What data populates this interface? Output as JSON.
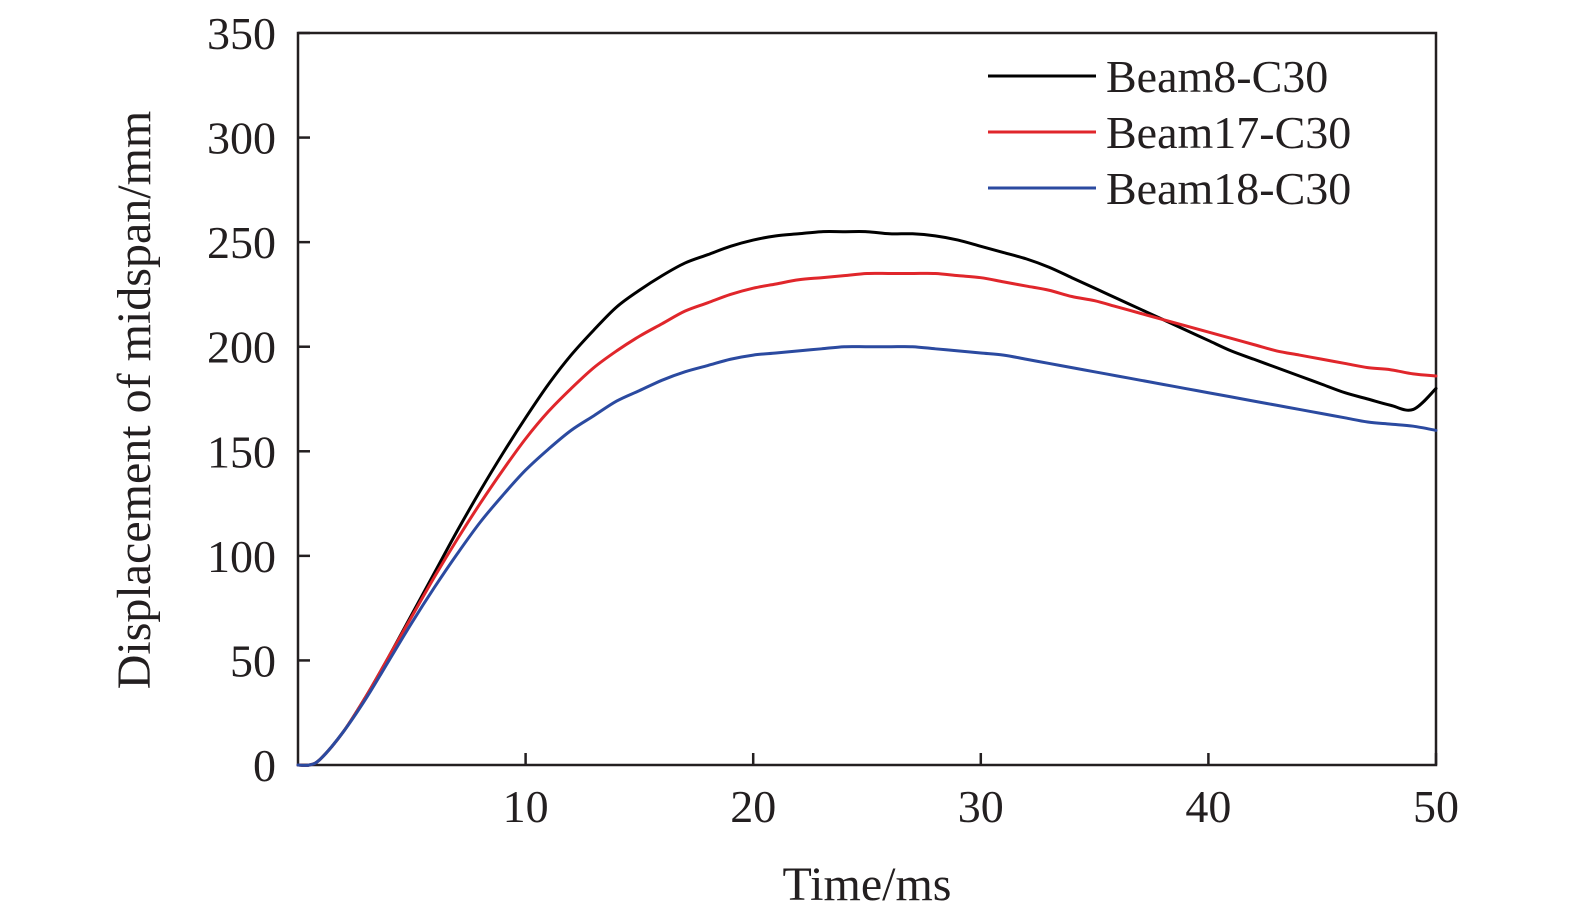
{
  "chart_data": {
    "type": "line",
    "title": "",
    "xlabel": "Time/ms",
    "ylabel": "Displacement of midspan/mm",
    "xlim": [
      0,
      50
    ],
    "ylim": [
      0,
      350
    ],
    "xticks": [
      10,
      20,
      30,
      40,
      50
    ],
    "xtick_labels": [
      "10",
      "20",
      "30",
      "40",
      "50"
    ],
    "yticks": [
      0,
      50,
      100,
      150,
      200,
      250,
      300,
      350
    ],
    "ytick_labels": [
      "0",
      "50",
      "100",
      "150",
      "200",
      "250",
      "300",
      "350"
    ],
    "grid": false,
    "legend_position": "top-right",
    "x": [
      0,
      0.5,
      1,
      2,
      3,
      4,
      5,
      6,
      7,
      8,
      9,
      10,
      11,
      12,
      13,
      14,
      15,
      16,
      17,
      18,
      19,
      20,
      21,
      22,
      23,
      24,
      25,
      26,
      27,
      28,
      29,
      30,
      31,
      32,
      33,
      34,
      35,
      36,
      37,
      38,
      39,
      40,
      41,
      42,
      43,
      44,
      45,
      46,
      47,
      48,
      49,
      50
    ],
    "series": [
      {
        "name": "Beam8-C30",
        "color": "#000000",
        "values": [
          0,
          0,
          3,
          16,
          33,
          52,
          72,
          92,
          112,
          131,
          149,
          166,
          182,
          196,
          208,
          219,
          227,
          234,
          240,
          244,
          248,
          251,
          253,
          254,
          255,
          255,
          255,
          254,
          254,
          253,
          251,
          248,
          245,
          242,
          238,
          233,
          228,
          223,
          218,
          213,
          208,
          203,
          198,
          194,
          190,
          186,
          182,
          178,
          175,
          172,
          170,
          180
        ]
      },
      {
        "name": "Beam17-C30",
        "color": "#e0262b",
        "values": [
          0,
          0,
          3,
          16,
          33,
          52,
          71,
          90,
          108,
          125,
          141,
          156,
          169,
          180,
          190,
          198,
          205,
          211,
          217,
          221,
          225,
          228,
          230,
          232,
          233,
          234,
          235,
          235,
          235,
          235,
          234,
          233,
          231,
          229,
          227,
          224,
          222,
          219,
          216,
          213,
          210,
          207,
          204,
          201,
          198,
          196,
          194,
          192,
          190,
          189,
          187,
          186
        ]
      },
      {
        "name": "Beam18-C30",
        "color": "#2b4aa0",
        "values": [
          0,
          0,
          3,
          16,
          32,
          50,
          68,
          85,
          101,
          116,
          129,
          141,
          151,
          160,
          167,
          174,
          179,
          184,
          188,
          191,
          194,
          196,
          197,
          198,
          199,
          200,
          200,
          200,
          200,
          199,
          198,
          197,
          196,
          194,
          192,
          190,
          188,
          186,
          184,
          182,
          180,
          178,
          176,
          174,
          172,
          170,
          168,
          166,
          164,
          163,
          162,
          160
        ]
      }
    ]
  }
}
